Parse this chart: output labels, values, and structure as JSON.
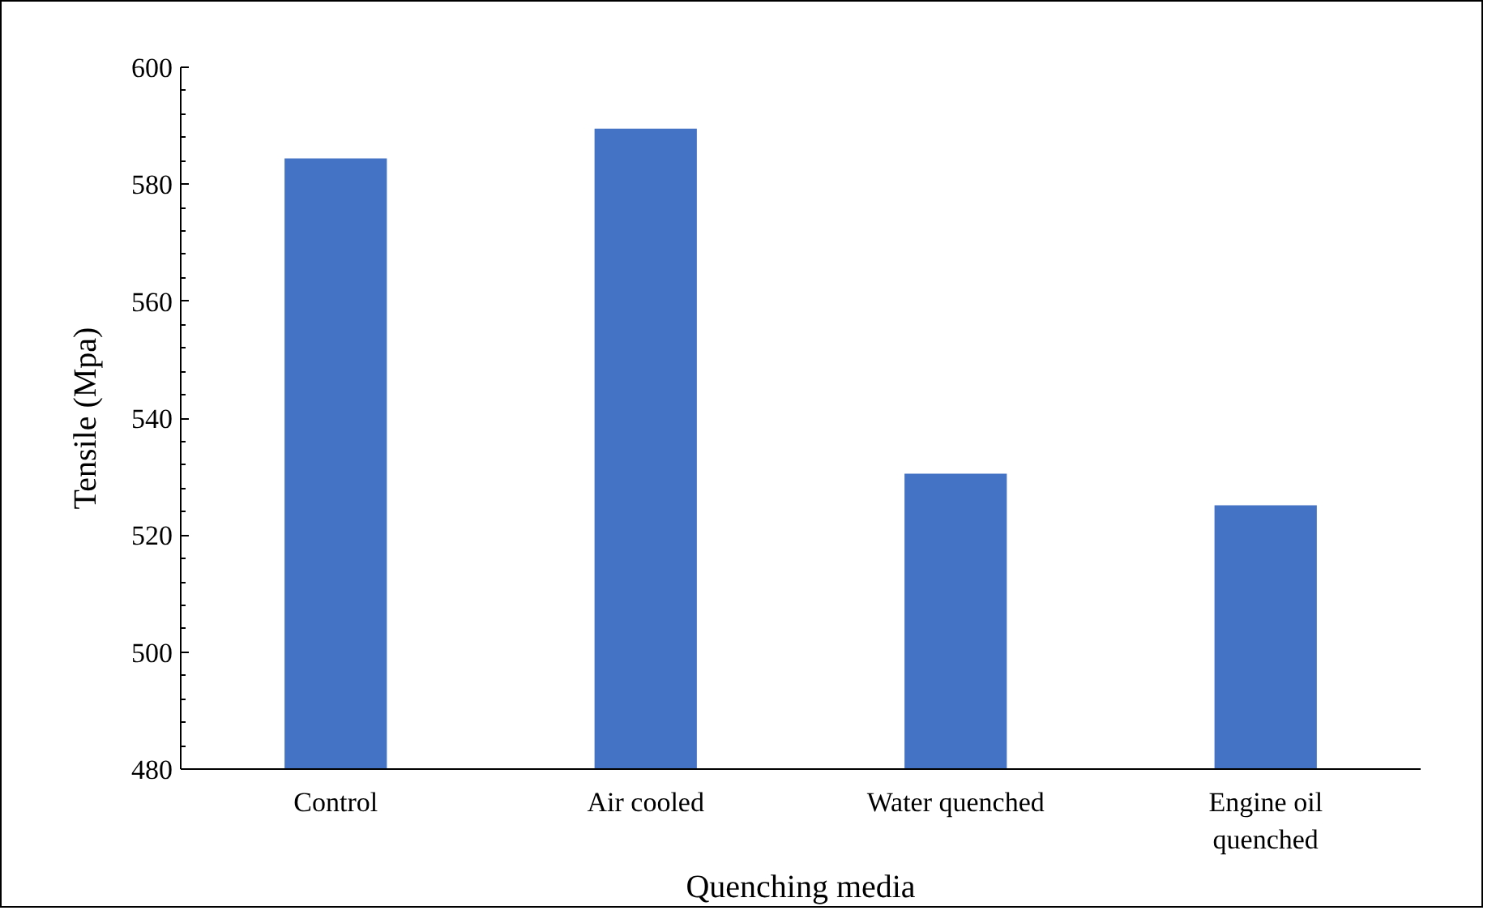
{
  "chart_data": {
    "type": "bar",
    "xlabel": "Quenching media",
    "ylabel": "Tensile (Mpa)",
    "categories": [
      "Control",
      "Air cooled",
      "Water quenched",
      "Engine oil quenched"
    ],
    "values": [
      584.4,
      589.5,
      530.5,
      525.1
    ],
    "color": "#4472c4",
    "ylim": [
      480,
      600
    ],
    "yticks": [
      480,
      500,
      520,
      540,
      560,
      580,
      600
    ],
    "grid": false
  }
}
